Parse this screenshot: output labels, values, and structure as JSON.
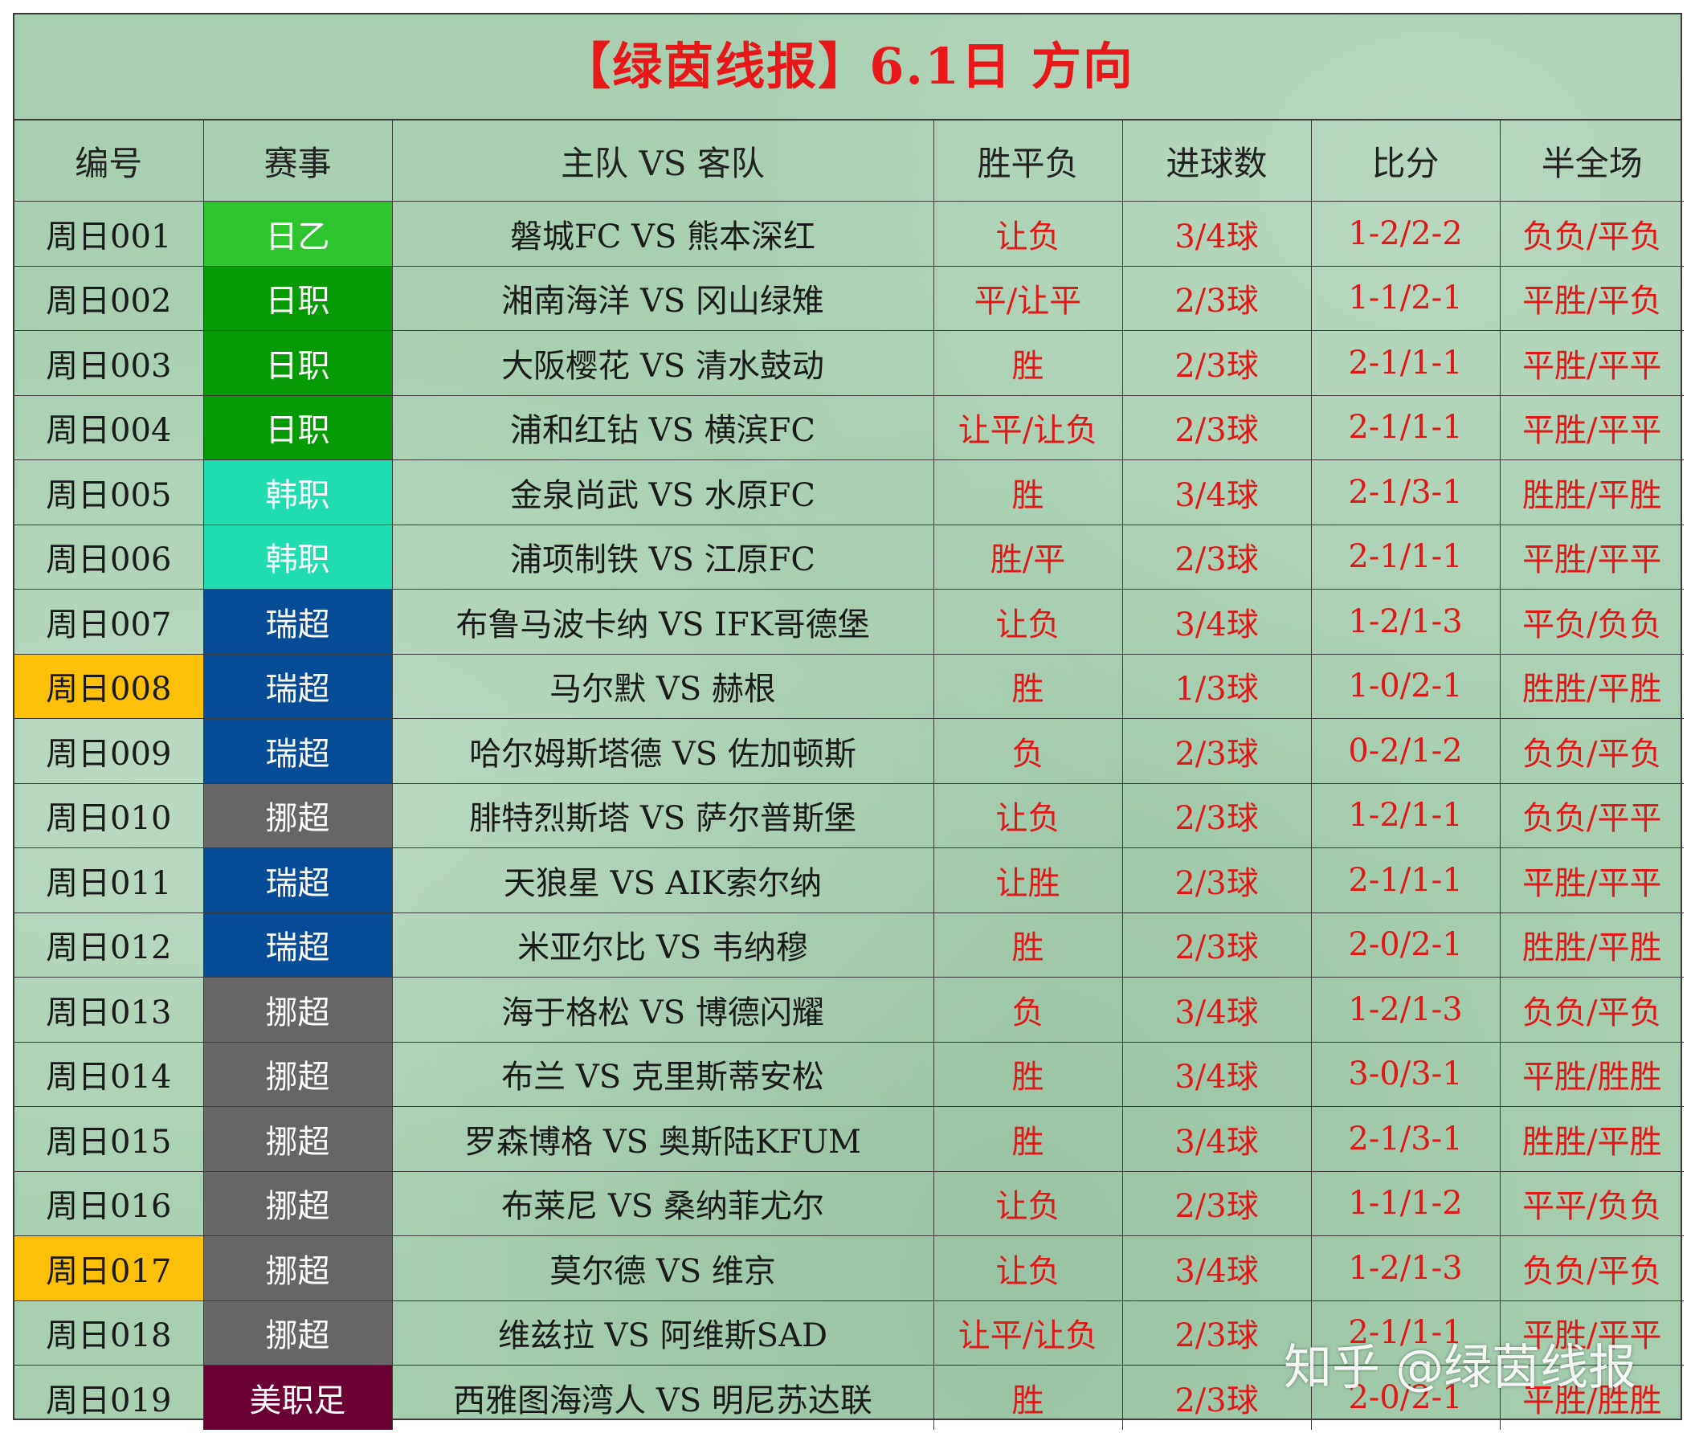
{
  "title": "【绿茵线报】6.1日 方向",
  "headers": [
    "编号",
    "赛事",
    "主队 VS 客队",
    "胜平负",
    "进球数",
    "比分",
    "半全场"
  ],
  "league_colors": {
    "日乙": "#2dc42d",
    "日职": "#069a06",
    "韩职": "#1fdcb1",
    "瑞超": "#064c96",
    "挪超": "#666666",
    "美职足": "#6b0034"
  },
  "highlight_color": "#fdc009",
  "rows": [
    {
      "num": "周日001",
      "league": "日乙",
      "match": "磐城FC VS 熊本深红",
      "wdl": "让负",
      "goals": "3/4球",
      "score": "1-2/2-2",
      "htft": "负负/平负",
      "highlight": false
    },
    {
      "num": "周日002",
      "league": "日职",
      "match": "湘南海洋 VS 冈山绿雉",
      "wdl": "平/让平",
      "goals": "2/3球",
      "score": "1-1/2-1",
      "htft": "平胜/平负",
      "highlight": false
    },
    {
      "num": "周日003",
      "league": "日职",
      "match": "大阪樱花 VS 清水鼓动",
      "wdl": "胜",
      "goals": "2/3球",
      "score": "2-1/1-1",
      "htft": "平胜/平平",
      "highlight": false
    },
    {
      "num": "周日004",
      "league": "日职",
      "match": "浦和红钻 VS 横滨FC",
      "wdl": "让平/让负",
      "goals": "2/3球",
      "score": "2-1/1-1",
      "htft": "平胜/平平",
      "highlight": false
    },
    {
      "num": "周日005",
      "league": "韩职",
      "match": "金泉尚武 VS 水原FC",
      "wdl": "胜",
      "goals": "3/4球",
      "score": "2-1/3-1",
      "htft": "胜胜/平胜",
      "highlight": false
    },
    {
      "num": "周日006",
      "league": "韩职",
      "match": "浦项制铁 VS 江原FC",
      "wdl": "胜/平",
      "goals": "2/3球",
      "score": "2-1/1-1",
      "htft": "平胜/平平",
      "highlight": false
    },
    {
      "num": "周日007",
      "league": "瑞超",
      "match": "布鲁马波卡纳 VS IFK哥德堡",
      "wdl": "让负",
      "goals": "3/4球",
      "score": "1-2/1-3",
      "htft": "平负/负负",
      "highlight": false
    },
    {
      "num": "周日008",
      "league": "瑞超",
      "match": "马尔默 VS 赫根",
      "wdl": "胜",
      "goals": "1/3球",
      "score": "1-0/2-1",
      "htft": "胜胜/平胜",
      "highlight": true
    },
    {
      "num": "周日009",
      "league": "瑞超",
      "match": "哈尔姆斯塔德 VS 佐加顿斯",
      "wdl": "负",
      "goals": "2/3球",
      "score": "0-2/1-2",
      "htft": "负负/平负",
      "highlight": false
    },
    {
      "num": "周日010",
      "league": "挪超",
      "match": "腓特烈斯塔 VS 萨尔普斯堡",
      "wdl": "让负",
      "goals": "2/3球",
      "score": "1-2/1-1",
      "htft": "负负/平平",
      "highlight": false
    },
    {
      "num": "周日011",
      "league": "瑞超",
      "match": "天狼星 VS AIK索尔纳",
      "wdl": "让胜",
      "goals": "2/3球",
      "score": "2-1/1-1",
      "htft": "平胜/平平",
      "highlight": false
    },
    {
      "num": "周日012",
      "league": "瑞超",
      "match": "米亚尔比 VS 韦纳穆",
      "wdl": "胜",
      "goals": "2/3球",
      "score": "2-0/2-1",
      "htft": "胜胜/平胜",
      "highlight": false
    },
    {
      "num": "周日013",
      "league": "挪超",
      "match": "海于格松 VS 博德闪耀",
      "wdl": "负",
      "goals": "3/4球",
      "score": "1-2/1-3",
      "htft": "负负/平负",
      "highlight": false
    },
    {
      "num": "周日014",
      "league": "挪超",
      "match": "布兰 VS 克里斯蒂安松",
      "wdl": "胜",
      "goals": "3/4球",
      "score": "3-0/3-1",
      "htft": "平胜/胜胜",
      "highlight": false
    },
    {
      "num": "周日015",
      "league": "挪超",
      "match": "罗森博格 VS 奥斯陆KFUM",
      "wdl": "胜",
      "goals": "3/4球",
      "score": "2-1/3-1",
      "htft": "胜胜/平胜",
      "highlight": false
    },
    {
      "num": "周日016",
      "league": "挪超",
      "match": "布莱尼 VS 桑纳菲尤尔",
      "wdl": "让负",
      "goals": "2/3球",
      "score": "1-1/1-2",
      "htft": "平平/负负",
      "highlight": false
    },
    {
      "num": "周日017",
      "league": "挪超",
      "match": "莫尔德 VS 维京",
      "wdl": "让负",
      "goals": "3/4球",
      "score": "1-2/1-3",
      "htft": "负负/平负",
      "highlight": true
    },
    {
      "num": "周日018",
      "league": "挪超",
      "match": "维兹拉 VS 阿维斯SAD",
      "wdl": "让平/让负",
      "goals": "2/3球",
      "score": "2-1/1-1",
      "htft": "平胜/平平",
      "highlight": false
    },
    {
      "num": "周日019",
      "league": "美职足",
      "match": "西雅图海湾人 VS 明尼苏达联",
      "wdl": "胜",
      "goals": "2/3球",
      "score": "2-0/2-1",
      "htft": "平胜/胜胜",
      "highlight": false
    }
  ],
  "watermark": "知乎 @绿茵线报"
}
